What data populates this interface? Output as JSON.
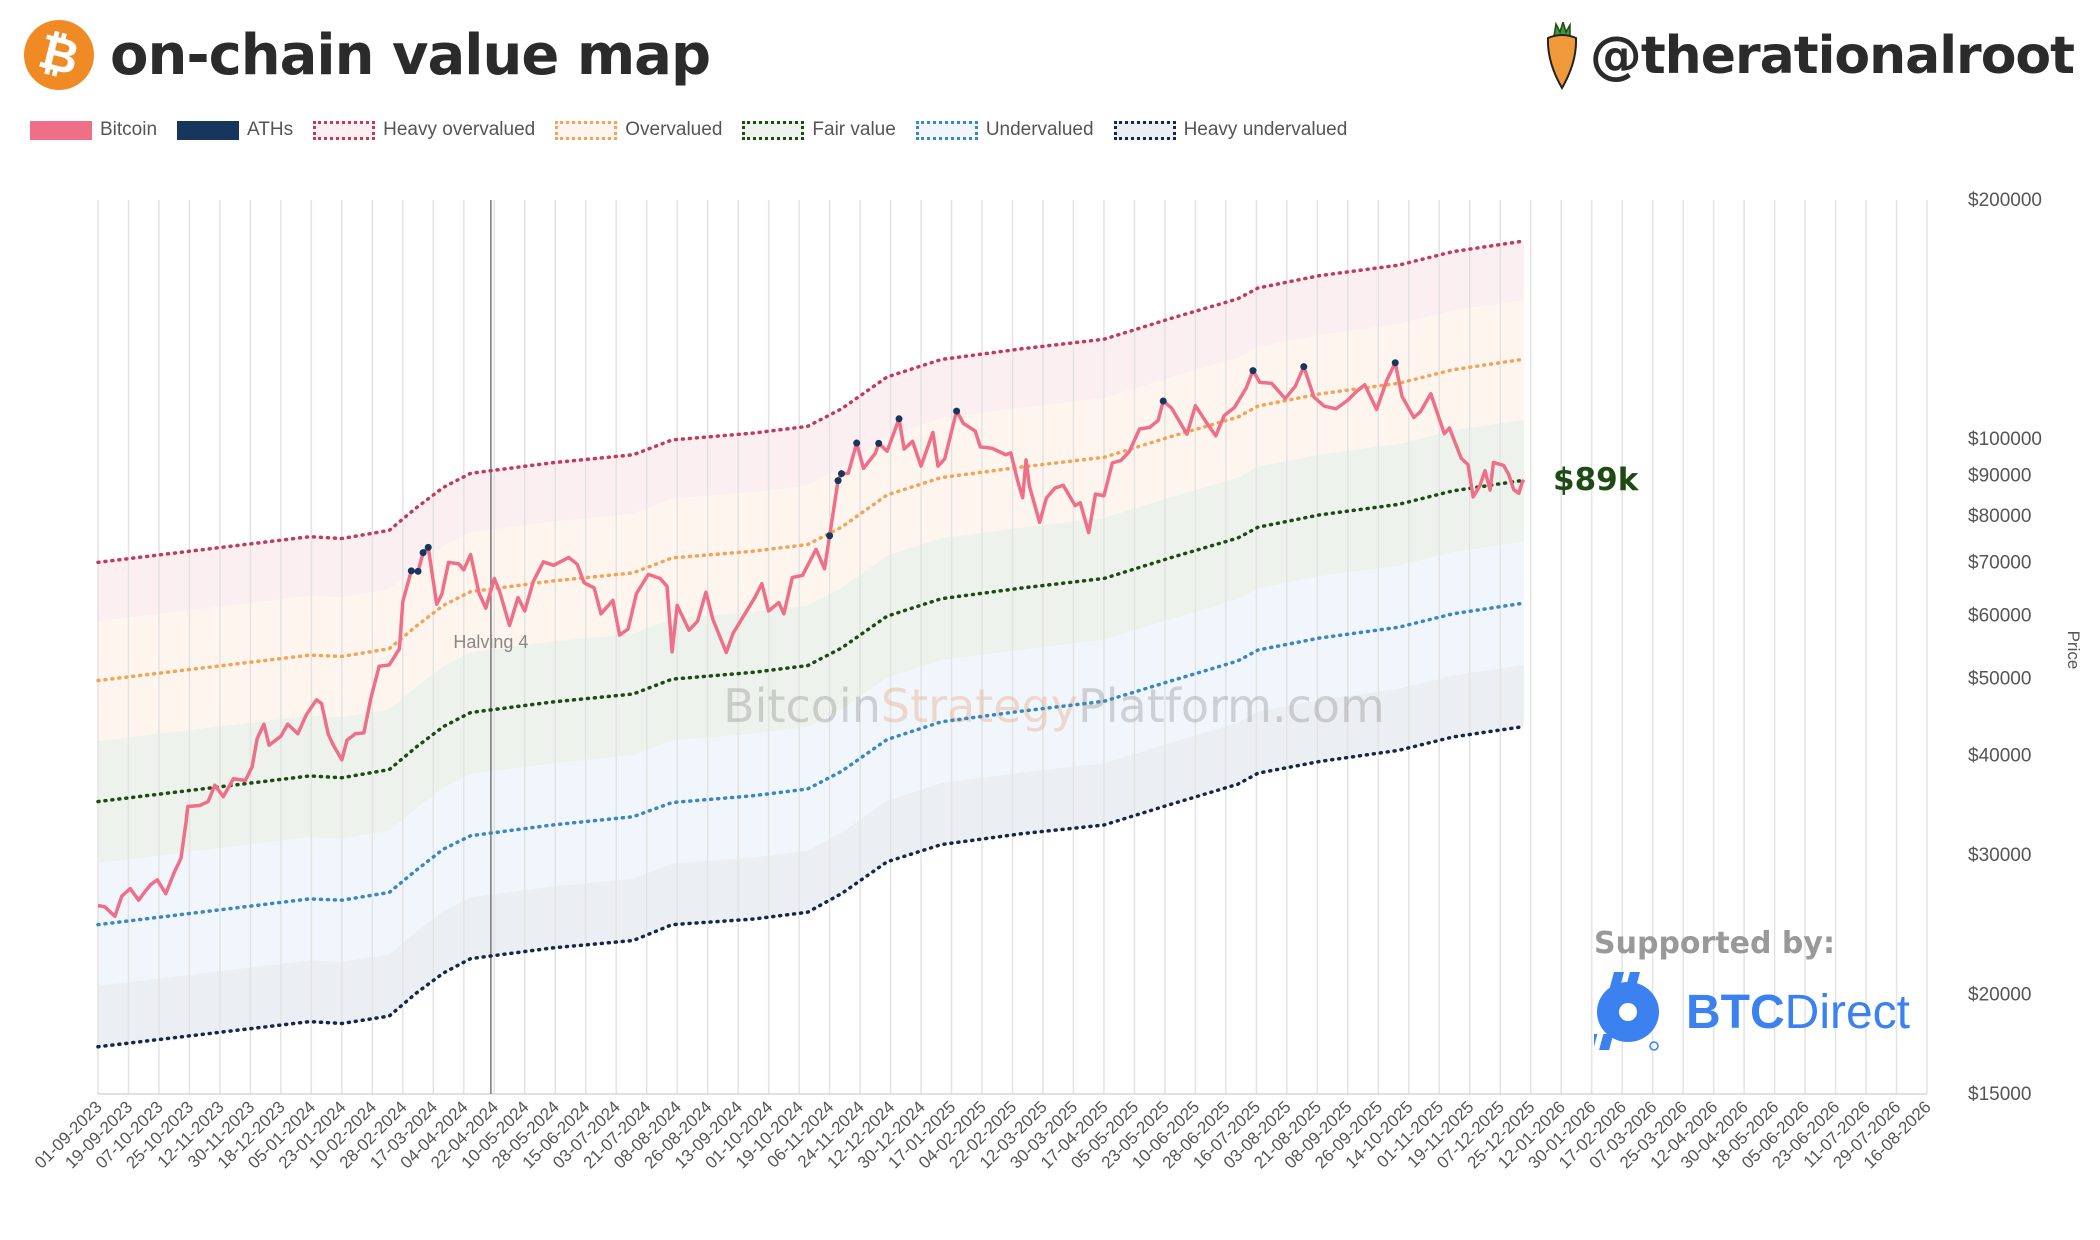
{
  "header": {
    "title": "on-chain value map",
    "logo_icon": "bitcoin-logo",
    "handle": "@therationalroot",
    "handle_icon": "carrot"
  },
  "legend": [
    {
      "label": "Bitcoin",
      "color": "#ef6f88",
      "style": "solid"
    },
    {
      "label": "ATHs",
      "color": "#17365d",
      "style": "solid"
    },
    {
      "label": "Heavy overvalued",
      "color": "#c23a5c",
      "fill": "#fbeff1",
      "style": "dotted"
    },
    {
      "label": "Overvalued",
      "color": "#f2a45a",
      "fill": "#fef6ee",
      "style": "dotted"
    },
    {
      "label": "Fair value",
      "color": "#1e4a14",
      "fill": "#edf3ec",
      "style": "dotted"
    },
    {
      "label": "Undervalued",
      "color": "#3a88bf",
      "fill": "#f1f6fc",
      "style": "dotted"
    },
    {
      "label": "Heavy undervalued",
      "color": "#16284a",
      "fill": "#ebeff3",
      "style": "dotted"
    }
  ],
  "annotations": {
    "current_price": "$89k",
    "current_price_color": "#1e4a14",
    "halving_label": "Halving 4",
    "halving_date": "2024-04-20",
    "watermark": [
      "Bitcoin",
      "Strategy",
      "Platform.com"
    ]
  },
  "sponsor": {
    "label": "Supported by:",
    "name_bold": "BTC",
    "name_regular": "Direct",
    "color": "#3b82f0"
  },
  "chart_data": {
    "type": "line",
    "ylabel": "Price",
    "yscale": "log",
    "ylim": [
      15000,
      200000
    ],
    "xlim": [
      "2023-09-01",
      "2026-08-16"
    ],
    "grid": "vertical",
    "legend_position": "top-left",
    "y_ticks": [
      200000,
      100000,
      90000,
      80000,
      70000,
      60000,
      50000,
      40000,
      30000,
      20000,
      15000
    ],
    "y_tick_labels": [
      "$200000",
      "$100000",
      "$90000",
      "$80000",
      "$70000",
      "$60000",
      "$50000",
      "$40000",
      "$30000",
      "$20000",
      "$15000"
    ],
    "x_tick_labels": [
      "01-09-2023",
      "19-09-2023",
      "07-10-2023",
      "25-10-2023",
      "12-11-2023",
      "30-11-2023",
      "18-12-2023",
      "05-01-2024",
      "23-01-2024",
      "10-02-2024",
      "28-02-2024",
      "17-03-2024",
      "04-04-2024",
      "22-04-2024",
      "10-05-2024",
      "28-05-2024",
      "15-06-2024",
      "03-07-2024",
      "21-07-2024",
      "08-08-2024",
      "26-08-2024",
      "13-09-2024",
      "01-10-2024",
      "19-10-2024",
      "06-11-2024",
      "24-11-2024",
      "12-12-2024",
      "30-12-2024",
      "17-01-2025",
      "04-02-2025",
      "22-02-2025",
      "12-03-2025",
      "30-03-2025",
      "17-04-2025",
      "05-05-2025",
      "23-05-2025",
      "10-06-2025",
      "28-06-2025",
      "16-07-2025",
      "03-08-2025",
      "21-08-2025",
      "08-09-2025",
      "26-09-2025",
      "14-10-2025",
      "01-11-2025",
      "19-11-2025",
      "07-12-2025",
      "25-12-2025",
      "12-01-2026",
      "30-01-2026",
      "17-02-2026",
      "07-03-2026",
      "25-03-2026",
      "12-04-2026",
      "30-04-2026",
      "18-05-2026",
      "05-06-2026",
      "23-06-2026",
      "11-07-2026",
      "29-07-2026",
      "16-08-2026"
    ],
    "band_dates": [
      "2023-09-01",
      "2024-01-04",
      "2024-01-23",
      "2024-02-20",
      "2024-03-07",
      "2024-03-23",
      "2024-04-08",
      "2024-05-26",
      "2024-07-13",
      "2024-08-05",
      "2024-09-22",
      "2024-10-24",
      "2024-11-13",
      "2024-12-10",
      "2025-01-11",
      "2025-02-28",
      "2025-04-17",
      "2025-05-26",
      "2025-07-05",
      "2025-07-17",
      "2025-08-22",
      "2025-10-08",
      "2025-11-09",
      "2025-12-21"
    ],
    "bands": [
      {
        "name": "Heavy overvalued",
        "values": [
          70000,
          75400,
          75000,
          76800,
          82000,
          87000,
          90600,
          93400,
          95600,
          99800,
          101800,
          103800,
          109200,
          119800,
          126000,
          130000,
          133600,
          141800,
          150200,
          155000,
          160600,
          165600,
          172200,
          177600
        ]
      },
      {
        "name": "Overvalued",
        "values": [
          49700,
          53500,
          53300,
          54500,
          58200,
          61800,
          64300,
          66300,
          67900,
          70900,
          72300,
          73700,
          77500,
          85100,
          89500,
          92300,
          94900,
          100700,
          106600,
          110100,
          114000,
          117600,
          122300,
          126100
        ]
      },
      {
        "name": "Fair value",
        "values": [
          35000,
          37700,
          37500,
          38400,
          41000,
          43500,
          45300,
          46700,
          47800,
          49900,
          50900,
          51900,
          54600,
          59900,
          63000,
          65000,
          66800,
          70900,
          75100,
          77500,
          80300,
          82800,
          86100,
          88800
        ]
      },
      {
        "name": "Undervalued",
        "values": [
          24500,
          26400,
          26300,
          26900,
          28700,
          30500,
          31700,
          32700,
          33500,
          34900,
          35600,
          36300,
          38200,
          41900,
          44100,
          45500,
          46800,
          49600,
          52600,
          54300,
          56200,
          58000,
          60300,
          62200
        ]
      },
      {
        "name": "Heavy undervalued",
        "values": [
          17200,
          18500,
          18400,
          18800,
          20100,
          21300,
          22200,
          22900,
          23400,
          24500,
          24900,
          25400,
          26800,
          29400,
          30900,
          31900,
          32700,
          34700,
          36800,
          38000,
          39300,
          40600,
          42200,
          43500
        ]
      }
    ],
    "bitcoin": [
      [
        "2023-09-01",
        25900
      ],
      [
        "2023-09-05",
        25800
      ],
      [
        "2023-09-11",
        25100
      ],
      [
        "2023-09-15",
        26600
      ],
      [
        "2023-09-20",
        27200
      ],
      [
        "2023-09-25",
        26300
      ],
      [
        "2023-09-29",
        27000
      ],
      [
        "2023-10-02",
        27500
      ],
      [
        "2023-10-06",
        27900
      ],
      [
        "2023-10-11",
        26800
      ],
      [
        "2023-10-16",
        28500
      ],
      [
        "2023-10-20",
        29700
      ],
      [
        "2023-10-23",
        33000
      ],
      [
        "2023-10-24",
        34500
      ],
      [
        "2023-10-31",
        34600
      ],
      [
        "2023-11-05",
        35000
      ],
      [
        "2023-11-09",
        36700
      ],
      [
        "2023-11-14",
        35500
      ],
      [
        "2023-11-20",
        37400
      ],
      [
        "2023-11-27",
        37200
      ],
      [
        "2023-12-01",
        38700
      ],
      [
        "2023-12-04",
        42000
      ],
      [
        "2023-12-08",
        43800
      ],
      [
        "2023-12-11",
        41200
      ],
      [
        "2023-12-18",
        42300
      ],
      [
        "2023-12-22",
        43800
      ],
      [
        "2023-12-28",
        42600
      ],
      [
        "2024-01-02",
        45000
      ],
      [
        "2024-01-08",
        47000
      ],
      [
        "2024-01-11",
        46500
      ],
      [
        "2024-01-15",
        42500
      ],
      [
        "2024-01-18",
        41200
      ],
      [
        "2024-01-23",
        39500
      ],
      [
        "2024-01-26",
        41800
      ],
      [
        "2024-01-31",
        42600
      ],
      [
        "2024-02-05",
        42700
      ],
      [
        "2024-02-09",
        47100
      ],
      [
        "2024-02-14",
        51800
      ],
      [
        "2024-02-20",
        52000
      ],
      [
        "2024-02-26",
        54500
      ],
      [
        "2024-02-28",
        62500
      ],
      [
        "2024-03-04",
        68300
      ],
      [
        "2024-03-08",
        68200
      ],
      [
        "2024-03-11",
        72000
      ],
      [
        "2024-03-14",
        73100
      ],
      [
        "2024-03-19",
        62000
      ],
      [
        "2024-03-22",
        63800
      ],
      [
        "2024-03-26",
        70000
      ],
      [
        "2024-04-01",
        69700
      ],
      [
        "2024-04-04",
        68500
      ],
      [
        "2024-04-08",
        71600
      ],
      [
        "2024-04-13",
        64000
      ],
      [
        "2024-04-17",
        61300
      ],
      [
        "2024-04-22",
        66800
      ],
      [
        "2024-04-25",
        64500
      ],
      [
        "2024-05-01",
        58300
      ],
      [
        "2024-05-06",
        63200
      ],
      [
        "2024-05-10",
        60800
      ],
      [
        "2024-05-15",
        66200
      ],
      [
        "2024-05-21",
        70100
      ],
      [
        "2024-05-27",
        69400
      ],
      [
        "2024-06-05",
        71000
      ],
      [
        "2024-06-10",
        69600
      ],
      [
        "2024-06-14",
        66000
      ],
      [
        "2024-06-20",
        65000
      ],
      [
        "2024-06-24",
        60300
      ],
      [
        "2024-07-01",
        62700
      ],
      [
        "2024-07-05",
        56700
      ],
      [
        "2024-07-10",
        57700
      ],
      [
        "2024-07-15",
        64000
      ],
      [
        "2024-07-22",
        67600
      ],
      [
        "2024-07-29",
        66800
      ],
      [
        "2024-08-02",
        65300
      ],
      [
        "2024-08-05",
        54000
      ],
      [
        "2024-08-08",
        61800
      ],
      [
        "2024-08-15",
        57500
      ],
      [
        "2024-08-20",
        59000
      ],
      [
        "2024-08-25",
        64200
      ],
      [
        "2024-08-29",
        59400
      ],
      [
        "2024-09-06",
        53900
      ],
      [
        "2024-09-10",
        57000
      ],
      [
        "2024-09-17",
        60300
      ],
      [
        "2024-09-23",
        63300
      ],
      [
        "2024-09-27",
        65800
      ],
      [
        "2024-10-01",
        60800
      ],
      [
        "2024-10-07",
        62300
      ],
      [
        "2024-10-10",
        60300
      ],
      [
        "2024-10-15",
        67000
      ],
      [
        "2024-10-21",
        67400
      ],
      [
        "2024-10-29",
        72700
      ],
      [
        "2024-11-03",
        68700
      ],
      [
        "2024-11-06",
        75600
      ],
      [
        "2024-11-11",
        88700
      ],
      [
        "2024-11-13",
        90500
      ],
      [
        "2024-11-17",
        90600
      ],
      [
        "2024-11-22",
        98900
      ],
      [
        "2024-11-26",
        91900
      ],
      [
        "2024-12-03",
        96000
      ],
      [
        "2024-12-05",
        98800
      ],
      [
        "2024-12-10",
        96600
      ],
      [
        "2024-12-17",
        106100
      ],
      [
        "2024-12-20",
        97200
      ],
      [
        "2024-12-25",
        99400
      ],
      [
        "2024-12-30",
        92500
      ],
      [
        "2025-01-06",
        102000
      ],
      [
        "2025-01-09",
        92500
      ],
      [
        "2025-01-13",
        94500
      ],
      [
        "2025-01-20",
        108500
      ],
      [
        "2025-01-24",
        104700
      ],
      [
        "2025-01-31",
        102400
      ],
      [
        "2025-02-03",
        97800
      ],
      [
        "2025-02-10",
        97400
      ],
      [
        "2025-02-18",
        95600
      ],
      [
        "2025-02-21",
        96100
      ],
      [
        "2025-02-25",
        88700
      ],
      [
        "2025-02-28",
        84400
      ],
      [
        "2025-03-02",
        94200
      ],
      [
        "2025-03-04",
        87300
      ],
      [
        "2025-03-10",
        78600
      ],
      [
        "2025-03-14",
        84300
      ],
      [
        "2025-03-19",
        86800
      ],
      [
        "2025-03-24",
        87500
      ],
      [
        "2025-03-31",
        82500
      ],
      [
        "2025-04-03",
        83200
      ],
      [
        "2025-04-08",
        76300
      ],
      [
        "2025-04-12",
        85300
      ],
      [
        "2025-04-17",
        84900
      ],
      [
        "2025-04-22",
        93400
      ],
      [
        "2025-04-27",
        94000
      ],
      [
        "2025-05-02",
        96500
      ],
      [
        "2025-05-08",
        103000
      ],
      [
        "2025-05-14",
        103500
      ],
      [
        "2025-05-19",
        105600
      ],
      [
        "2025-05-22",
        111700
      ],
      [
        "2025-05-27",
        109400
      ],
      [
        "2025-06-05",
        101500
      ],
      [
        "2025-06-10",
        110200
      ],
      [
        "2025-06-17",
        104600
      ],
      [
        "2025-06-22",
        101000
      ],
      [
        "2025-06-27",
        107100
      ],
      [
        "2025-07-03",
        109600
      ],
      [
        "2025-07-10",
        116000
      ],
      [
        "2025-07-14",
        122000
      ],
      [
        "2025-07-18",
        117900
      ],
      [
        "2025-07-25",
        117600
      ],
      [
        "2025-08-02",
        112500
      ],
      [
        "2025-08-08",
        116600
      ],
      [
        "2025-08-13",
        123400
      ],
      [
        "2025-08-19",
        113000
      ],
      [
        "2025-08-25",
        110100
      ],
      [
        "2025-09-01",
        109200
      ],
      [
        "2025-09-08",
        112000
      ],
      [
        "2025-09-14",
        115300
      ],
      [
        "2025-09-18",
        117100
      ],
      [
        "2025-09-25",
        109000
      ],
      [
        "2025-10-01",
        118600
      ],
      [
        "2025-10-06",
        124800
      ],
      [
        "2025-10-10",
        113200
      ],
      [
        "2025-10-17",
        106500
      ],
      [
        "2025-10-21",
        108400
      ],
      [
        "2025-10-27",
        114100
      ],
      [
        "2025-11-04",
        101600
      ],
      [
        "2025-11-07",
        103300
      ],
      [
        "2025-11-14",
        94600
      ],
      [
        "2025-11-18",
        92900
      ],
      [
        "2025-11-21",
        84600
      ],
      [
        "2025-11-25",
        87400
      ],
      [
        "2025-11-28",
        91300
      ],
      [
        "2025-12-01",
        86300
      ],
      [
        "2025-12-03",
        93500
      ],
      [
        "2025-12-09",
        92700
      ],
      [
        "2025-12-12",
        90300
      ],
      [
        "2025-12-15",
        86400
      ],
      [
        "2025-12-18",
        85500
      ],
      [
        "2025-12-20",
        88300
      ],
      [
        "2025-12-21",
        88900
      ]
    ],
    "aths": [
      [
        "2024-03-04",
        68300
      ],
      [
        "2024-03-08",
        68200
      ],
      [
        "2024-03-11",
        72000
      ],
      [
        "2024-03-14",
        73100
      ],
      [
        "2024-11-06",
        75600
      ],
      [
        "2024-11-11",
        88700
      ],
      [
        "2024-11-13",
        90500
      ],
      [
        "2024-11-22",
        98900
      ],
      [
        "2024-12-05",
        98800
      ],
      [
        "2024-12-17",
        106100
      ],
      [
        "2025-01-20",
        108500
      ],
      [
        "2025-05-22",
        111700
      ],
      [
        "2025-07-14",
        122000
      ],
      [
        "2025-08-13",
        123400
      ],
      [
        "2025-10-06",
        124800
      ]
    ]
  }
}
